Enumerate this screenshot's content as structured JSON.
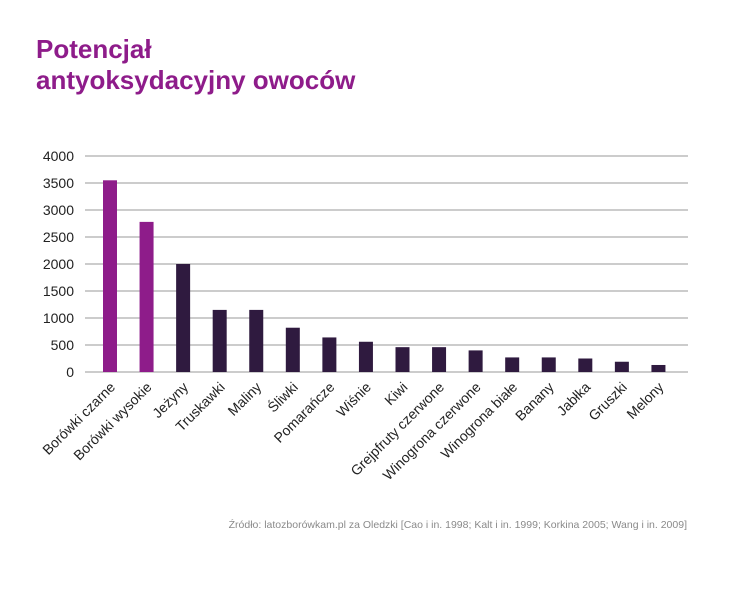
{
  "title": {
    "line1": "Potencjał",
    "line2": "antyoksydacyjny owoców"
  },
  "source": "Źródło: latozborówkam.pl za Oledzki [Cao i in. 1998; Kalt i in. 1999; Korkina 2005; Wang i in. 2009]",
  "colors": {
    "title": "#8e1c8a",
    "highlight_bar": "#8e1c8a",
    "default_bar": "#2f1a3f",
    "grid": "#9a9a9a"
  },
  "chart_data": {
    "type": "bar",
    "title": "Potencjał antyoksydacyjny owoców",
    "xlabel": "",
    "ylabel": "",
    "ylim": [
      0,
      4000
    ],
    "yticks": [
      0,
      500,
      1000,
      1500,
      2000,
      2500,
      3000,
      3500,
      4000
    ],
    "grid": true,
    "categories": [
      "Borówki czarne",
      "Borówki wysokie",
      "Jeżyny",
      "Truskawki",
      "Maliny",
      "Śliwki",
      "Pomarańcze",
      "Wiśnie",
      "Kiwi",
      "Grejpfruty czerwone",
      "Winogrona czerwone",
      "Winogrona białe",
      "Banany",
      "Jabłka",
      "Gruszki",
      "Melony"
    ],
    "values": [
      3550,
      2780,
      2000,
      1150,
      1150,
      820,
      640,
      560,
      460,
      460,
      400,
      270,
      270,
      250,
      190,
      130
    ],
    "highlighted": [
      true,
      true,
      false,
      false,
      false,
      false,
      false,
      false,
      false,
      false,
      false,
      false,
      false,
      false,
      false,
      false
    ]
  }
}
